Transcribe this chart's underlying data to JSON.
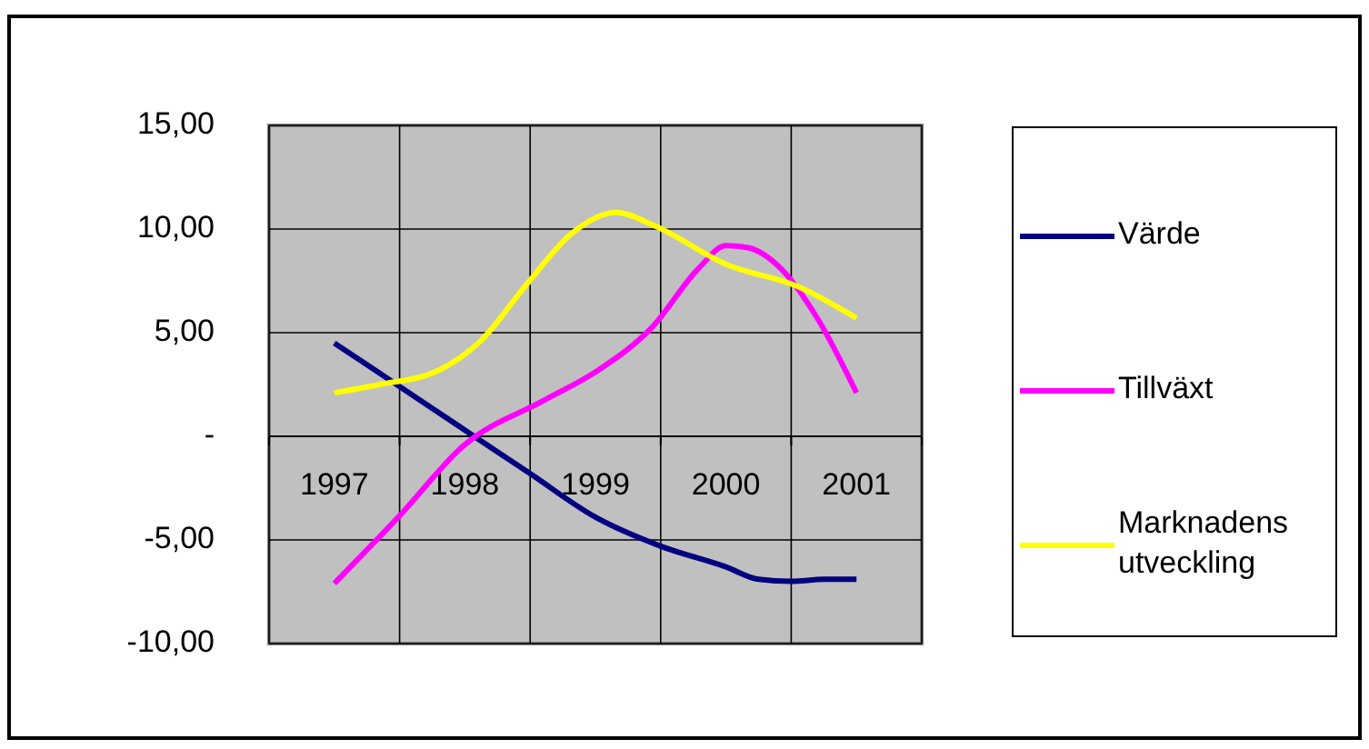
{
  "chart_data": {
    "type": "line",
    "xlim": [
      1996.5,
      2001.5
    ],
    "xticks": [
      {
        "value": 1996.5,
        "label": null
      },
      {
        "value": 1997,
        "label": "1997"
      },
      {
        "value": 1997.5,
        "label": null
      },
      {
        "value": 1998,
        "label": "1998"
      },
      {
        "value": 1998.5,
        "label": null
      },
      {
        "value": 1999,
        "label": "1999"
      },
      {
        "value": 1999.5,
        "label": null
      },
      {
        "value": 2000,
        "label": "2000"
      },
      {
        "value": 2000.5,
        "label": null
      },
      {
        "value": 2001,
        "label": "2001"
      },
      {
        "value": 2001.5,
        "label": null
      }
    ],
    "ylim": [
      -10,
      15
    ],
    "yticks": [
      {
        "value": -10,
        "label": "-10,00"
      },
      {
        "value": -5,
        "label": "-5,00"
      },
      {
        "value": 0,
        "label": "-"
      },
      {
        "value": 5,
        "label": "5,00"
      },
      {
        "value": 10,
        "label": "10,00"
      },
      {
        "value": 15,
        "label": "15,00"
      }
    ],
    "grid": true,
    "legend": "right",
    "marker": "none",
    "line_style": "solid",
    "series": [
      {
        "name": "Värde",
        "color": "#000080",
        "x": [
          1997,
          1997.5,
          1998,
          1998.5,
          1999,
          1999.5,
          2000,
          2000.25,
          2000.5,
          2000.75,
          2001
        ],
        "values": [
          4.5,
          2.4,
          0.3,
          -1.8,
          -3.9,
          -5.3,
          -6.3,
          -6.9,
          -7.0,
          -6.9,
          -6.9
        ]
      },
      {
        "name": "Tillväxt",
        "color": "#ff00ff",
        "x": [
          1997,
          1997.49,
          1998,
          1998.61,
          1999,
          1999.44,
          1999.79,
          2000,
          2000.17,
          2000.42,
          2000.7,
          2001
        ],
        "values": [
          -7.1,
          -3.9,
          -0.4,
          1.75,
          3.1,
          5.3,
          8.1,
          9.2,
          9.1,
          8.1,
          5.7,
          2.1
        ]
      },
      {
        "name": "Marknadens utveckling",
        "color": "#ffff00",
        "x": [
          1997,
          1997.35,
          1997.77,
          1998.12,
          1998.47,
          1998.82,
          1999.16,
          1999.44,
          2000,
          2000.56,
          2001
        ],
        "values": [
          2.1,
          2.5,
          3.1,
          4.6,
          7.3,
          9.8,
          10.8,
          10.2,
          8.3,
          7.2,
          5.7
        ]
      }
    ]
  }
}
